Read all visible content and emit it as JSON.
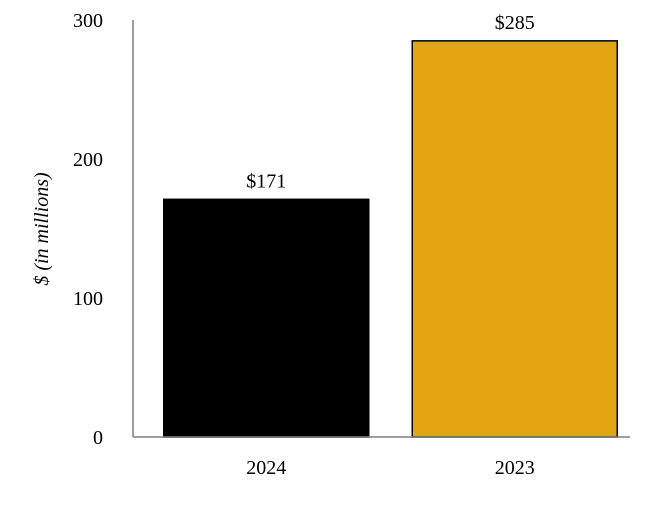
{
  "chart_data": {
    "type": "bar",
    "categories": [
      "2024",
      "2023"
    ],
    "values": [
      171,
      285
    ],
    "data_labels": [
      "$171",
      "$285"
    ],
    "colors": [
      "#000000",
      "#E3A613"
    ],
    "title": "",
    "xlabel": "",
    "ylabel": "$ (in millions)",
    "ylim": [
      0,
      300
    ],
    "yticks": [
      0,
      100,
      200,
      300
    ],
    "grid": false
  }
}
